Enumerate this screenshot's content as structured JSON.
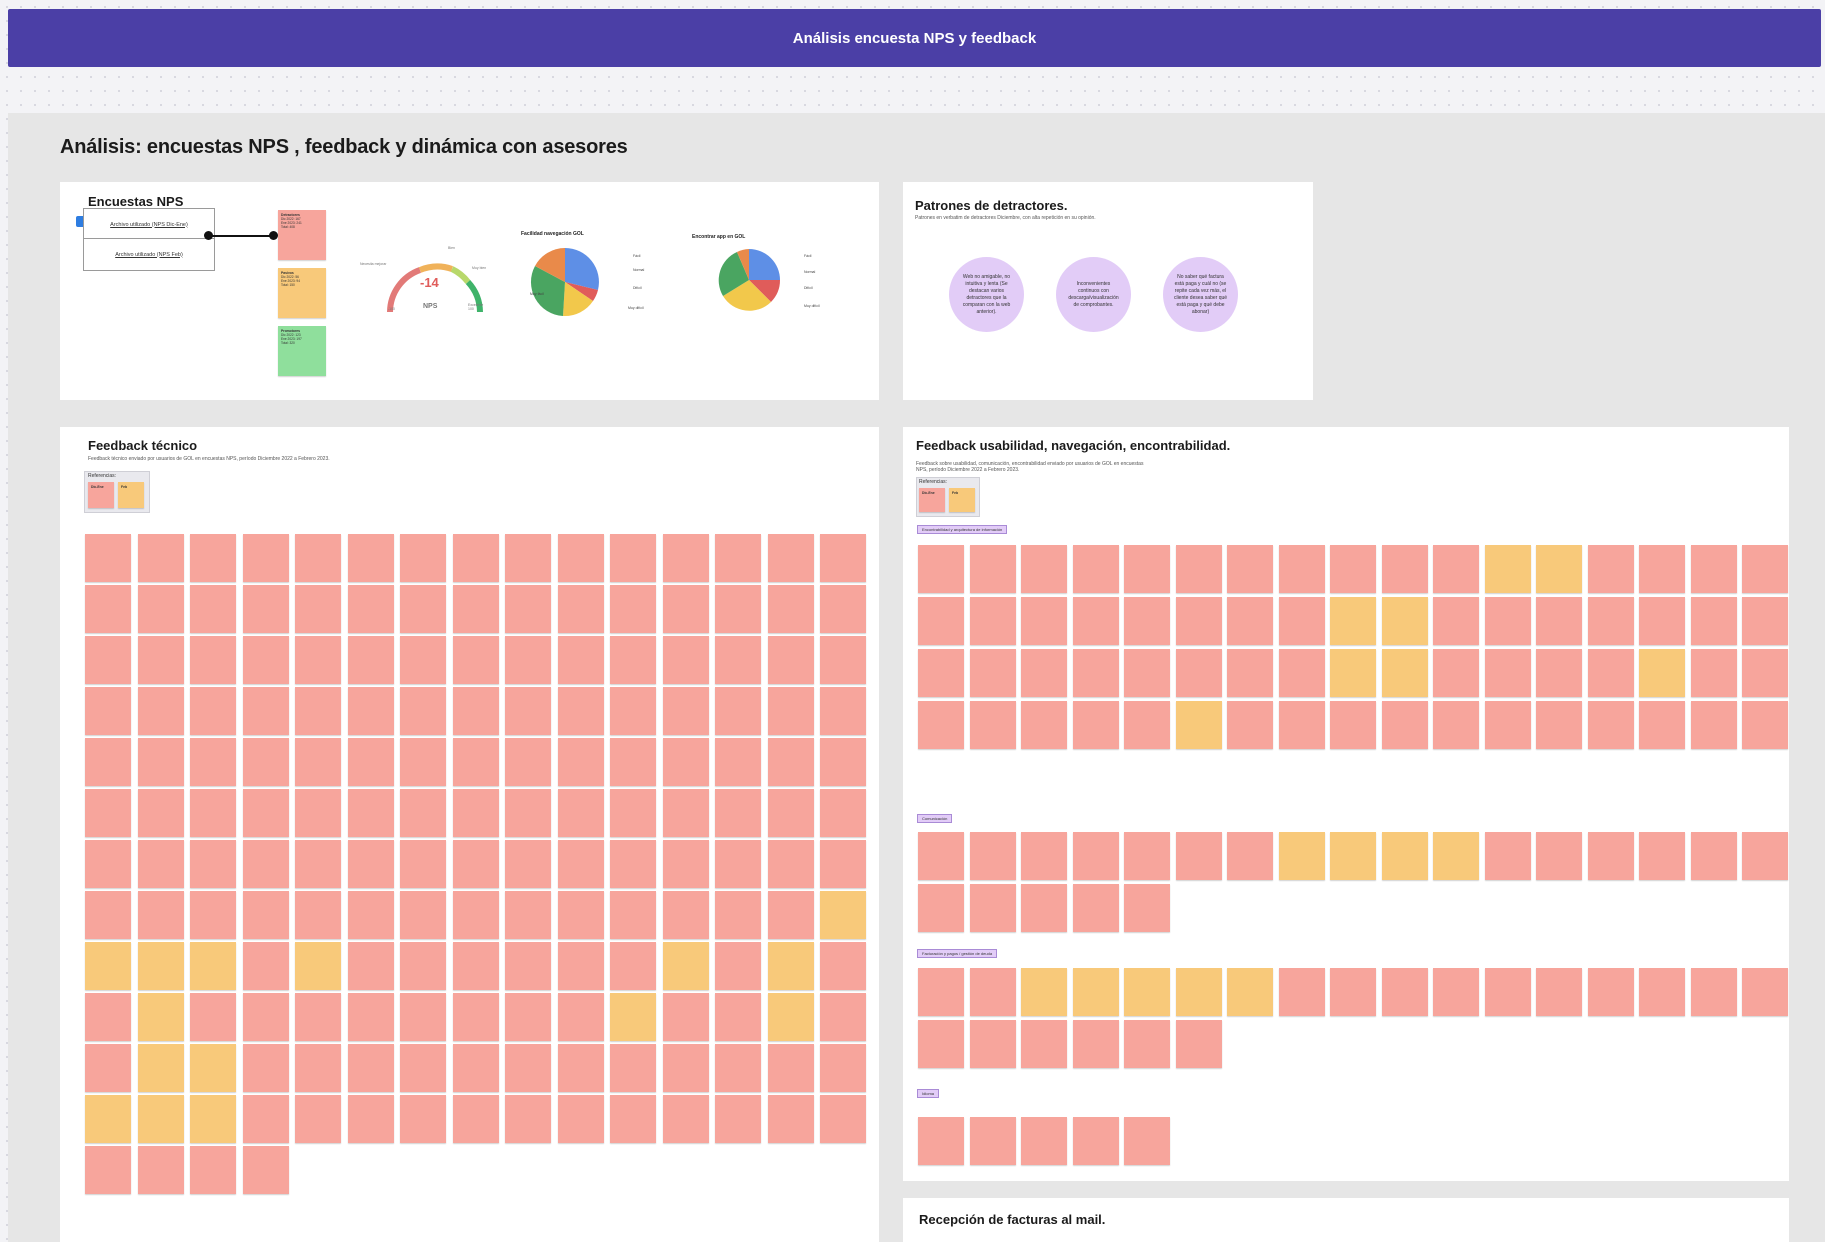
{
  "header": {
    "title": "Análisis encuesta NPS y feedback"
  },
  "board": {
    "heading": "Análisis: encuestas NPS , feedback y dinámica con asesores"
  },
  "nps_panel": {
    "title": "Encuestas NPS",
    "file_1": "Archivo utilizado (NPS Dic-Ene)",
    "file_2": "Archivo utilizado (NPS Feb)",
    "sticky_detractors": {
      "label": "Detractores",
      "lines": [
        "Dic 2022: 167",
        "Ene 2023: 241",
        "Total: 408"
      ]
    },
    "sticky_passives": {
      "label": "Pasivos",
      "lines": [
        "Dic 2022: 56",
        "Ene 2023: 94",
        "Total: 150"
      ]
    },
    "sticky_promoters": {
      "label": "Promotores",
      "lines": [
        "Dic 2022: 123",
        "Ene 2023: 197",
        "Total: 320"
      ]
    },
    "gauge": {
      "value": "-14",
      "label": "NPS",
      "min_label": "-100",
      "max_label": "100",
      "left_label": "Necesita mejorar",
      "mid_label": "Bien",
      "right_label": "Muy bien",
      "far_label": "Excelente"
    },
    "pie_1_title": "Facilidad navegación GOL",
    "pie_2_title": "Encontrar app en GOL",
    "pie_1_labels": [
      "Fácil",
      "Normal",
      "Difícil",
      "Muy difícil",
      "Muy fácil"
    ],
    "pie_2_labels": [
      "Fácil",
      "Normal",
      "Difícil",
      "Muy difícil"
    ]
  },
  "patterns_panel": {
    "title": "Patrones de detractores.",
    "subtitle": "Patrones en verbatim de detractores Diciembre, con alta repetición en su opinión.",
    "circles": [
      "Web no amigable, no intuitiva y lenta (Se destacan varios detractores que la comparan con la web anterior).",
      "Inconvenientes continuos con descarga/visualización de comprobantes.",
      "No saber qué factura está paga y cuál no (se repite cada vez más, el cliente desea saber qué está paga y qué debe abonar)"
    ]
  },
  "tech_panel": {
    "title": "Feedback técnico",
    "subtitle": "Feedback técnico enviado por usuarios de GOL en encuestas NPS, período Diciembre 2022 a Febrero 2023.",
    "refs_label": "Referencias:",
    "ref_1": "Dic-Ene",
    "ref_2": "Feb"
  },
  "usability_panel": {
    "title": "Feedback usabilidad, navegación, encontrabilidad.",
    "subtitle": "Feedback sobre usabilidad, comunicación, encontrabilidad enviado por usuarios de GOL en encuestas NPS, período Diciembre 2022 a Febrero 2023.",
    "refs_label": "Referencias:",
    "ref_1": "Dic-Ene",
    "ref_2": "Feb",
    "tag_1": "Encontrabilidad y arquitectura de información",
    "tag_2": "Comunicación",
    "tag_3": "Facturación y pagos / gestión de deuda",
    "tag_4": "Idioma"
  },
  "invoices_panel": {
    "title": "Recepción de facturas al mail."
  },
  "colors": {
    "header": "#4b3fa6",
    "sticky_pink": "#f7a59c",
    "sticky_orange": "#f8c97a",
    "sticky_green": "#8fdf9c",
    "circle": "#e2ccf7"
  }
}
